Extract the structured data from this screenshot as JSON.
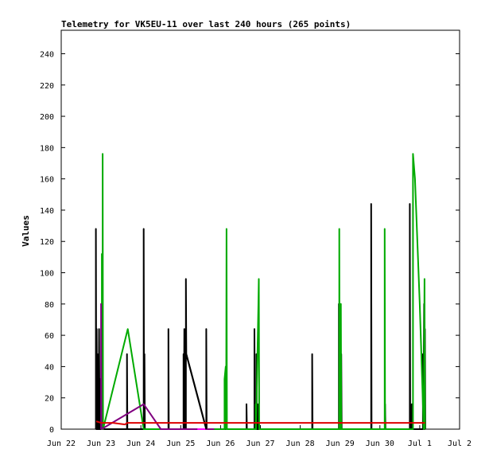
{
  "chart_data": {
    "type": "line",
    "title": "Telemetry for VK5EU-11 over last 240 hours (265 points)",
    "xlabel": "",
    "ylabel": "Values",
    "x_ticks": [
      "Jun 22",
      "Jun 23",
      "Jun 24",
      "Jun 25",
      "Jun 26",
      "Jun 27",
      "Jun 28",
      "Jun 29",
      "Jun 30",
      "Jul 1",
      "Jul 2"
    ],
    "y_ticks": [
      0,
      20,
      40,
      60,
      80,
      100,
      120,
      140,
      160,
      180,
      200,
      220,
      240
    ],
    "xlim": [
      0,
      10
    ],
    "ylim": [
      0,
      255
    ],
    "grid": false,
    "legend": "none",
    "series": [
      {
        "color": "#000000",
        "points": [
          [
            0.87,
            0
          ],
          [
            0.87,
            128
          ],
          [
            0.88,
            0
          ],
          [
            0.89,
            64
          ],
          [
            0.9,
            0
          ],
          [
            0.91,
            48
          ],
          [
            0.92,
            0
          ],
          [
            0.93,
            32
          ],
          [
            0.94,
            0
          ],
          [
            0.95,
            64
          ],
          [
            0.96,
            16
          ],
          [
            0.97,
            0
          ],
          [
            0.98,
            32
          ],
          [
            0.99,
            0
          ],
          [
            1.0,
            16
          ],
          [
            1.01,
            0
          ],
          [
            1.65,
            0
          ],
          [
            1.65,
            48
          ],
          [
            1.66,
            0
          ],
          [
            2.07,
            0
          ],
          [
            2.07,
            128
          ],
          [
            2.08,
            0
          ],
          [
            2.09,
            48
          ],
          [
            2.1,
            0
          ],
          [
            2.69,
            0
          ],
          [
            2.69,
            64
          ],
          [
            2.7,
            0
          ],
          [
            3.07,
            0
          ],
          [
            3.07,
            48
          ],
          [
            3.08,
            0
          ],
          [
            3.09,
            64
          ],
          [
            3.1,
            0
          ],
          [
            3.13,
            0
          ],
          [
            3.13,
            96
          ],
          [
            3.14,
            48
          ],
          [
            3.64,
            0
          ],
          [
            3.64,
            64
          ],
          [
            3.65,
            0
          ],
          [
            4.65,
            0
          ],
          [
            4.65,
            16
          ],
          [
            4.66,
            0
          ],
          [
            4.85,
            0
          ],
          [
            4.85,
            64
          ],
          [
            4.86,
            0
          ],
          [
            4.9,
            0
          ],
          [
            4.9,
            48
          ],
          [
            4.91,
            0
          ],
          [
            4.93,
            0
          ],
          [
            4.93,
            16
          ],
          [
            4.94,
            0
          ],
          [
            6.3,
            0
          ],
          [
            6.3,
            48
          ],
          [
            6.31,
            0
          ],
          [
            6.97,
            0
          ],
          [
            6.97,
            80
          ],
          [
            6.98,
            0
          ],
          [
            7.0,
            48
          ],
          [
            7.01,
            0
          ],
          [
            7.03,
            0
          ],
          [
            7.03,
            48
          ],
          [
            7.04,
            0
          ],
          [
            7.78,
            0
          ],
          [
            7.78,
            144
          ],
          [
            7.79,
            0
          ],
          [
            8.13,
            0
          ],
          [
            8.13,
            16
          ],
          [
            8.14,
            0
          ],
          [
            8.75,
            0
          ],
          [
            8.75,
            144
          ],
          [
            8.76,
            0
          ],
          [
            8.8,
            0
          ],
          [
            8.8,
            16
          ],
          [
            8.81,
            0
          ],
          [
            9.08,
            0
          ],
          [
            9.08,
            48
          ],
          [
            9.09,
            0
          ],
          [
            9.11,
            80
          ],
          [
            9.12,
            0
          ],
          [
            9.13,
            64
          ],
          [
            9.14,
            0
          ]
        ]
      },
      {
        "color": "#00aa00",
        "points": [
          [
            1.02,
            0
          ],
          [
            1.02,
            112
          ],
          [
            1.03,
            0
          ],
          [
            1.04,
            0
          ],
          [
            1.04,
            176
          ],
          [
            1.05,
            0
          ],
          [
            1.67,
            64
          ],
          [
            2.07,
            0
          ],
          [
            4.1,
            0
          ],
          [
            4.1,
            32
          ],
          [
            4.13,
            40
          ],
          [
            4.14,
            0
          ],
          [
            4.15,
            128
          ],
          [
            4.16,
            0
          ],
          [
            4.88,
            0
          ],
          [
            4.88,
            16
          ],
          [
            4.89,
            0
          ],
          [
            4.95,
            80
          ],
          [
            4.96,
            96
          ],
          [
            4.97,
            0
          ],
          [
            6.98,
            0
          ],
          [
            6.98,
            128
          ],
          [
            6.99,
            0
          ],
          [
            7.02,
            0
          ],
          [
            7.02,
            80
          ],
          [
            7.03,
            0
          ],
          [
            8.12,
            0
          ],
          [
            8.12,
            128
          ],
          [
            8.13,
            0
          ],
          [
            8.83,
            0
          ],
          [
            8.83,
            176
          ],
          [
            8.88,
            160
          ],
          [
            9.0,
            80
          ],
          [
            9.1,
            0
          ],
          [
            9.12,
            96
          ],
          [
            9.13,
            0
          ]
        ]
      },
      {
        "color": "#800080",
        "points": [
          [
            1.0,
            0
          ],
          [
            1.0,
            80
          ],
          [
            1.01,
            0
          ],
          [
            2.07,
            16
          ],
          [
            2.5,
            0
          ],
          [
            3.62,
            0
          ],
          [
            3.7,
            0
          ],
          [
            3.84,
            0
          ]
        ]
      },
      {
        "color": "#ff00ff",
        "points": [
          [
            3.42,
            0
          ],
          [
            3.62,
            0
          ]
        ]
      },
      {
        "color": "#000000",
        "points": [
          [
            3.14,
            48
          ],
          [
            3.64,
            0
          ]
        ]
      },
      {
        "color": "#dd0000",
        "points": [
          [
            0.88,
            5
          ],
          [
            1.0,
            4
          ],
          [
            1.3,
            4
          ],
          [
            1.6,
            3
          ],
          [
            1.66,
            4
          ],
          [
            2.0,
            4
          ],
          [
            3.0,
            4
          ],
          [
            4.0,
            4
          ],
          [
            5.0,
            4
          ],
          [
            6.0,
            4
          ],
          [
            7.0,
            4
          ],
          [
            8.0,
            4
          ],
          [
            9.13,
            4
          ]
        ]
      }
    ]
  }
}
